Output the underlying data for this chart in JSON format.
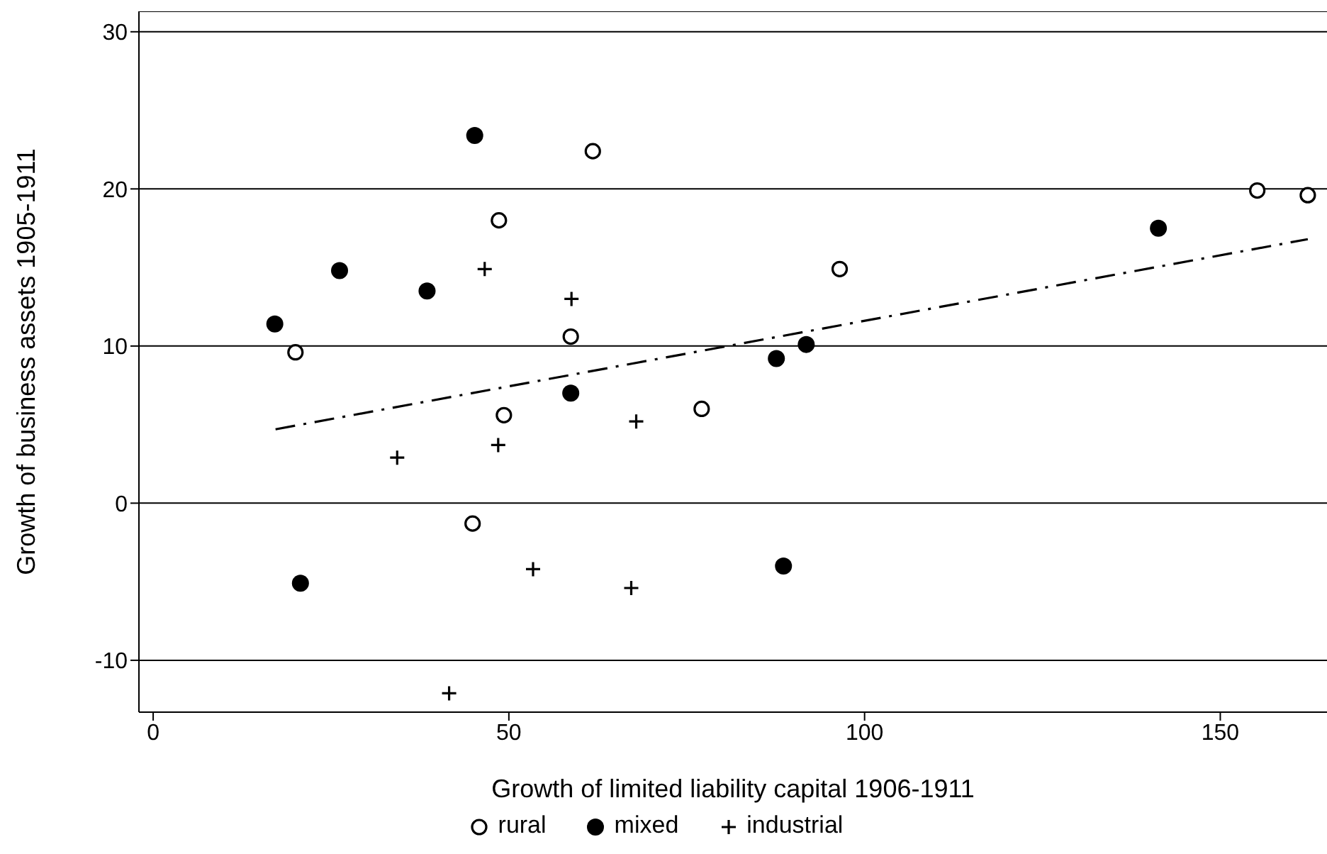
{
  "chart_data": {
    "type": "scatter",
    "xlabel": "Growth of limited liability capital 1906-1911",
    "ylabel": "Growth of business assets 1905-1911",
    "xlim": [
      -2,
      165
    ],
    "ylim": [
      -13.3,
      31.3
    ],
    "xticks": [
      0,
      50,
      100,
      150
    ],
    "yticks": [
      -10,
      0,
      10,
      20,
      30
    ],
    "grid": "y",
    "legend": "bottom",
    "series": [
      {
        "name": "rural",
        "color": "#000000",
        "marker": "circle",
        "x": [
          61.8,
          48.6,
          20.0,
          58.7,
          49.3,
          77.1,
          44.9,
          96.5,
          155.2,
          162.3
        ],
        "values": [
          22.4,
          18.0,
          9.6,
          10.6,
          5.6,
          6.0,
          -1.3,
          14.9,
          19.9,
          19.6
        ]
      },
      {
        "name": "mixed",
        "color": "#000000",
        "marker": "circle",
        "x": [
          45.2,
          26.2,
          38.5,
          17.1,
          58.7,
          20.7,
          87.6,
          91.8,
          88.6,
          141.3
        ],
        "values": [
          23.4,
          14.8,
          13.5,
          11.4,
          7.0,
          -5.1,
          9.2,
          10.1,
          -4.0,
          17.5
        ]
      },
      {
        "name": "industrial",
        "color": "#000000",
        "marker": "cross",
        "x": [
          46.6,
          58.8,
          34.3,
          48.5,
          67.9,
          53.4,
          67.2,
          41.6
        ],
        "values": [
          14.9,
          13.0,
          2.9,
          3.7,
          5.2,
          -4.2,
          -5.4,
          -12.1
        ]
      },
      {
        "type": "line",
        "color": "#000000",
        "line_style": "dashed",
        "marker": "none",
        "x": [
          17.2,
          162.3
        ],
        "values": [
          4.7,
          16.8
        ]
      }
    ]
  }
}
